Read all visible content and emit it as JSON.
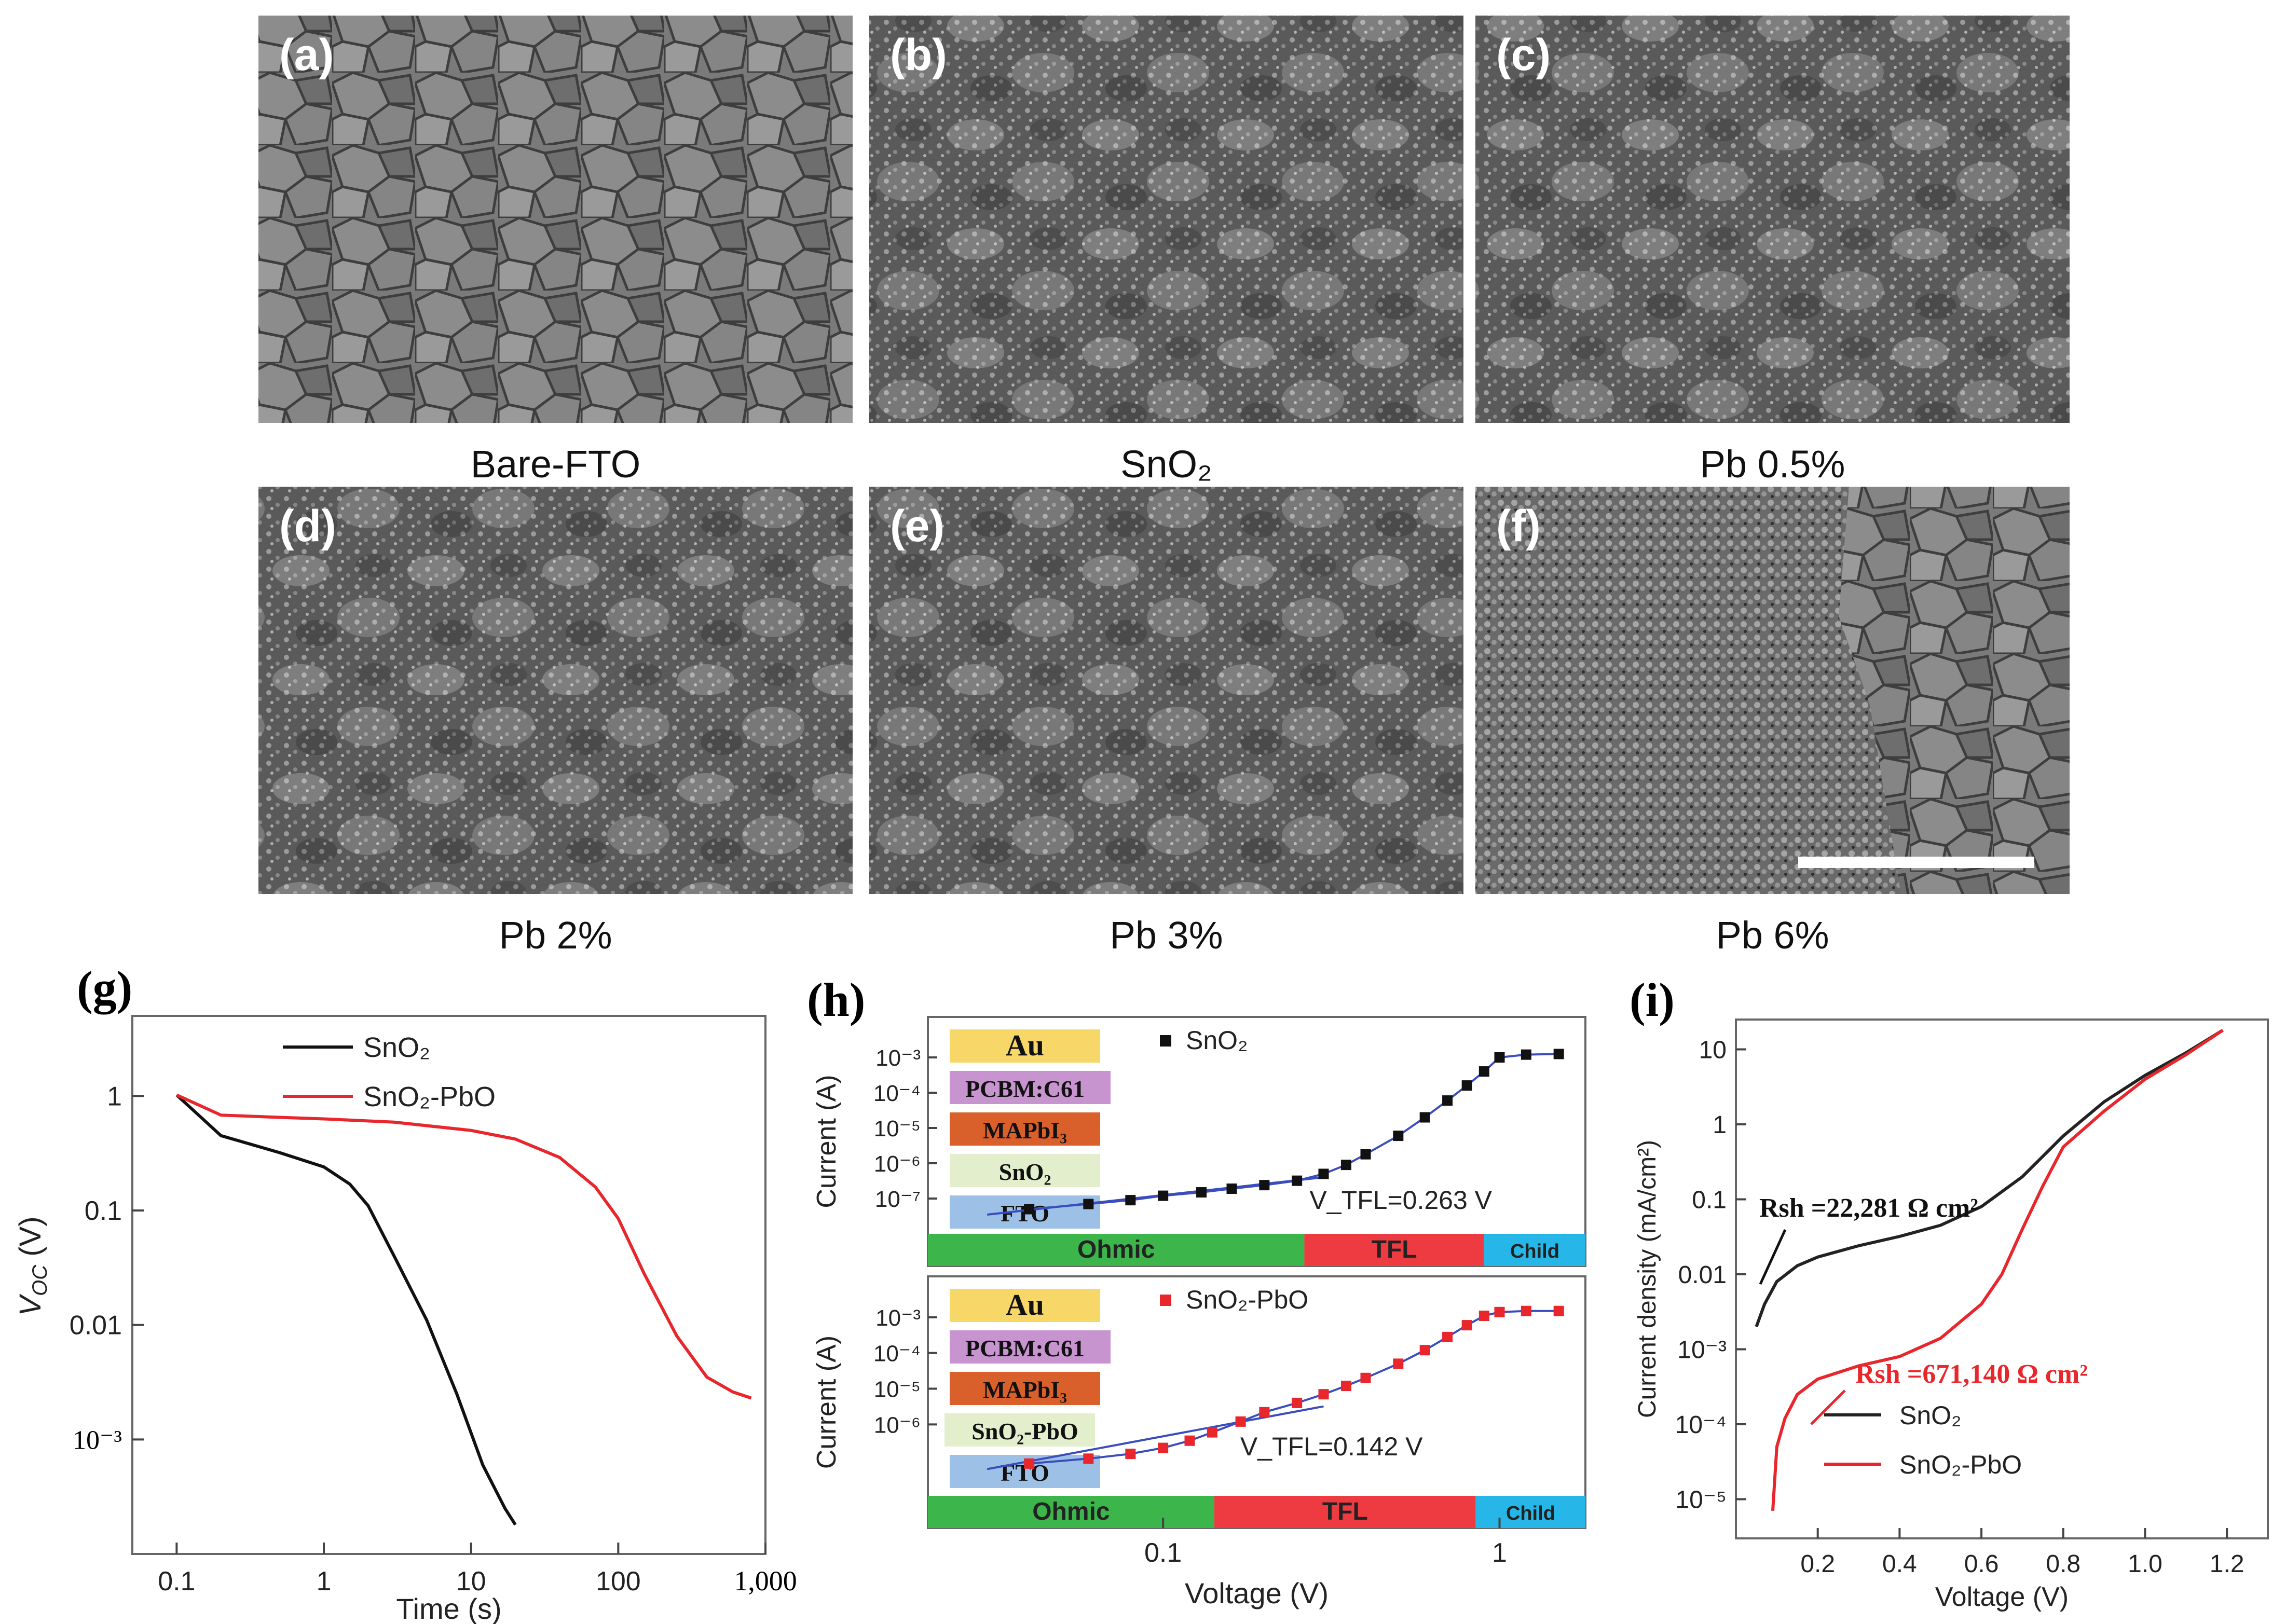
{
  "sem_panels": [
    {
      "tag": "(a)",
      "label": "Bare-FTO"
    },
    {
      "tag": "(b)",
      "label": "SnO₂"
    },
    {
      "tag": "(c)",
      "label": "Pb 0.5%"
    },
    {
      "tag": "(d)",
      "label": "Pb 2%"
    },
    {
      "tag": "(e)",
      "label": "Pb 3%"
    },
    {
      "tag": "(f)",
      "label": "Pb 6%"
    }
  ],
  "chart_data": [
    {
      "panel": "(g)",
      "type": "line",
      "xlabel": "Time (s)",
      "ylabel": "V_OC (V)",
      "xscale": "log",
      "yscale": "log",
      "xlim": [
        0.05,
        1000
      ],
      "ylim": [
        0.0001,
        5
      ],
      "xticks": [
        "0.1",
        "1",
        "10",
        "100",
        "1,000"
      ],
      "yticks": [
        "10⁻³",
        "0.01",
        "0.1",
        "1"
      ],
      "legend": [
        "SnO₂",
        "SnO₂-PbO"
      ],
      "series": [
        {
          "name": "SnO₂",
          "color": "#111111",
          "x": [
            0.1,
            0.2,
            0.5,
            1,
            1.5,
            2,
            3,
            5,
            8,
            12,
            17,
            20
          ],
          "y": [
            1.02,
            0.45,
            0.32,
            0.24,
            0.17,
            0.11,
            0.04,
            0.011,
            0.0025,
            0.0006,
            0.00025,
            0.00018
          ]
        },
        {
          "name": "SnO₂-PbO",
          "color": "#e8262b",
          "x": [
            0.1,
            0.2,
            0.5,
            1,
            3,
            10,
            20,
            40,
            70,
            100,
            150,
            250,
            400,
            600,
            800
          ],
          "y": [
            1.02,
            0.68,
            0.65,
            0.63,
            0.59,
            0.5,
            0.42,
            0.29,
            0.16,
            0.085,
            0.028,
            0.008,
            0.0035,
            0.0026,
            0.0023
          ]
        }
      ]
    },
    {
      "panel": "(h)",
      "type": "scatter",
      "xlabel": "Voltage (V)",
      "ylabel": "Current (A)",
      "xscale": "log",
      "yscale": "log",
      "xlim": [
        0.02,
        1.8
      ],
      "xticks": [
        "0.1",
        "1"
      ],
      "subplots": [
        {
          "legend": "SnO₂",
          "marker_color": "#111111",
          "vtfl_label": "V_TFL=0.263 V",
          "yticks": [
            "10⁻⁷",
            "10⁻⁶",
            "10⁻⁵",
            "10⁻⁴",
            "10⁻³"
          ],
          "ylim": [
            1e-08,
            0.01
          ],
          "regions": [
            {
              "name": "Ohmic",
              "from": 0.02,
              "to": 0.263,
              "color": "#3cb54a"
            },
            {
              "name": "TFL",
              "from": 0.263,
              "to": 0.9,
              "color": "#ee3b42"
            },
            {
              "name": "Child",
              "from": 0.9,
              "to": 1.8,
              "color": "#26b7e8"
            }
          ],
          "stack": [
            {
              "name": "Au",
              "color": "#f7d767"
            },
            {
              "name": "PCBM:C61",
              "color": "#c794cf"
            },
            {
              "name": "MAPbI₃",
              "color": "#d95f2b"
            },
            {
              "name": "SnO₂",
              "color": "#e3eecd"
            },
            {
              "name": "FTO",
              "color": "#9dc1e6"
            }
          ],
          "x": [
            0.04,
            0.06,
            0.08,
            0.1,
            0.13,
            0.16,
            0.2,
            0.25,
            0.3,
            0.35,
            0.4,
            0.5,
            0.6,
            0.7,
            0.8,
            0.9,
            1.0,
            1.2,
            1.5
          ],
          "y": [
            5e-08,
            7e-08,
            9e-08,
            1.2e-07,
            1.5e-07,
            1.9e-07,
            2.4e-07,
            3.2e-07,
            5e-07,
            9e-07,
            1.8e-06,
            6e-06,
            2e-05,
            6e-05,
            0.00016,
            0.0004,
            0.001,
            0.0012,
            0.00125
          ]
        },
        {
          "legend": "SnO₂-PbO",
          "marker_color": "#e8262b",
          "vtfl_label": "V_TFL=0.142 V",
          "yticks": [
            "10⁻⁶",
            "10⁻⁵",
            "10⁻⁴",
            "10⁻³"
          ],
          "ylim": [
            1e-08,
            0.01
          ],
          "regions": [
            {
              "name": "Ohmic",
              "from": 0.02,
              "to": 0.142,
              "color": "#3cb54a"
            },
            {
              "name": "TFL",
              "from": 0.142,
              "to": 0.85,
              "color": "#ee3b42"
            },
            {
              "name": "Child",
              "from": 0.85,
              "to": 1.8,
              "color": "#26b7e8"
            }
          ],
          "stack": [
            {
              "name": "Au",
              "color": "#f7d767"
            },
            {
              "name": "PCBM:C61",
              "color": "#c794cf"
            },
            {
              "name": "MAPbI₃",
              "color": "#d95f2b"
            },
            {
              "name": "SnO₂-PbO",
              "color": "#e3eecd"
            },
            {
              "name": "FTO",
              "color": "#9dc1e6"
            }
          ],
          "x": [
            0.04,
            0.06,
            0.08,
            0.1,
            0.12,
            0.14,
            0.17,
            0.2,
            0.25,
            0.3,
            0.35,
            0.4,
            0.5,
            0.6,
            0.7,
            0.8,
            0.9,
            1.0,
            1.2,
            1.5
          ],
          "y": [
            8e-08,
            1.1e-07,
            1.5e-07,
            2.2e-07,
            3.5e-07,
            6e-07,
            1.2e-06,
            2.2e-06,
            4e-06,
            7e-06,
            1.2e-05,
            2e-05,
            5e-05,
            0.00012,
            0.00028,
            0.0006,
            0.0011,
            0.0014,
            0.0015,
            0.0015
          ]
        }
      ]
    },
    {
      "panel": "(i)",
      "type": "line",
      "xlabel": "Voltage (V)",
      "ylabel": "Current density (mA/cm²)",
      "yscale": "log",
      "xlim": [
        0.0,
        1.3
      ],
      "ylim": [
        3e-06,
        25
      ],
      "xticks": [
        "0.2",
        "0.4",
        "0.6",
        "0.8",
        "1.0",
        "1.2"
      ],
      "yticks": [
        "10⁻⁵",
        "10⁻⁴",
        "10⁻³",
        "0.01",
        "0.1",
        "1",
        "10"
      ],
      "legend": [
        "SnO₂",
        "SnO₂-PbO"
      ],
      "annotations": [
        "Rsh =22,281 Ω cm²",
        "Rsh =671,140 Ω cm²"
      ],
      "series": [
        {
          "name": "SnO₂",
          "color": "#222222",
          "x": [
            0.05,
            0.07,
            0.1,
            0.15,
            0.2,
            0.3,
            0.4,
            0.5,
            0.6,
            0.7,
            0.8,
            0.9,
            1.0,
            1.1,
            1.19
          ],
          "y": [
            0.002,
            0.004,
            0.008,
            0.013,
            0.017,
            0.024,
            0.032,
            0.045,
            0.08,
            0.2,
            0.7,
            2.0,
            4.5,
            9.0,
            18
          ]
        },
        {
          "name": "SnO₂-PbO",
          "color": "#e8262b",
          "x": [
            0.09,
            0.1,
            0.12,
            0.15,
            0.2,
            0.3,
            0.4,
            0.5,
            0.6,
            0.65,
            0.7,
            0.75,
            0.8,
            0.9,
            1.0,
            1.1,
            1.19
          ],
          "y": [
            7e-06,
            5e-05,
            0.00012,
            0.00025,
            0.0004,
            0.0006,
            0.0008,
            0.0014,
            0.004,
            0.01,
            0.04,
            0.15,
            0.5,
            1.5,
            4.0,
            8.5,
            18
          ]
        }
      ]
    }
  ]
}
